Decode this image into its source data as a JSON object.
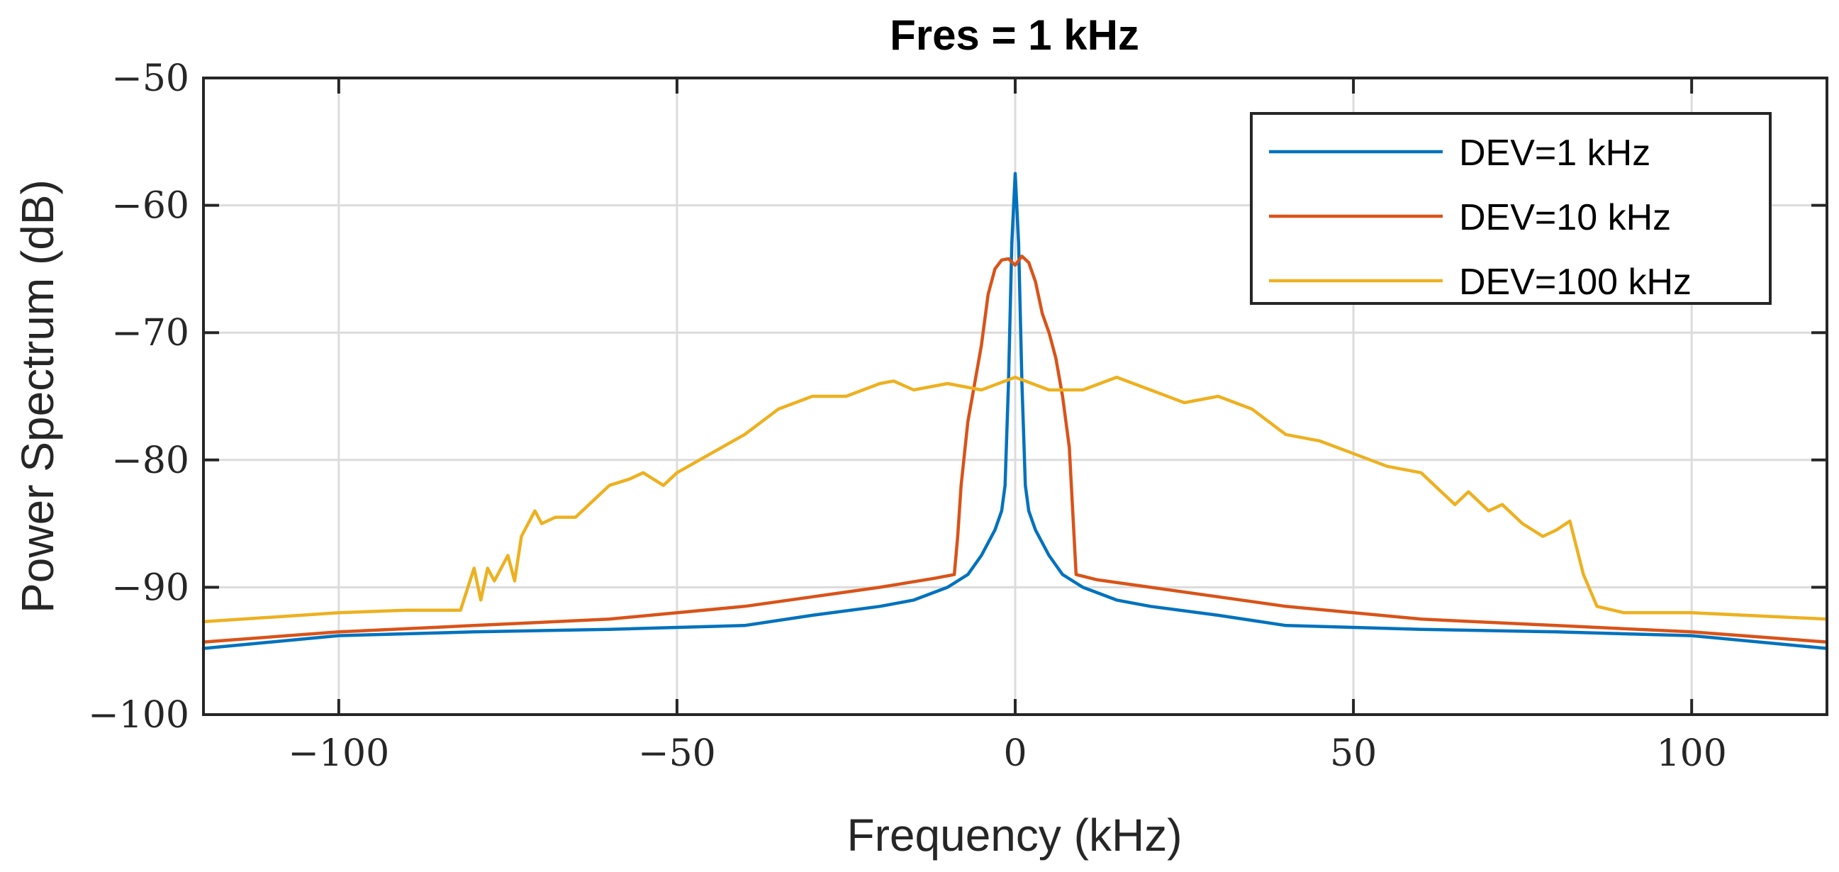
{
  "chart_data": {
    "type": "line",
    "title": "Fres = 1 kHz",
    "xlabel": "Frequency (kHz)",
    "ylabel": "Power Spectrum (dB)",
    "xlim": [
      -120,
      120
    ],
    "ylim": [
      -100,
      -50
    ],
    "xticks": [
      -100,
      -50,
      0,
      50,
      100
    ],
    "xtick_labels": [
      "−100",
      "−50",
      "0",
      "50",
      "100"
    ],
    "yticks": [
      -100,
      -90,
      -80,
      -70,
      -60,
      -50
    ],
    "ytick_labels": [
      "−100",
      "−90",
      "−80",
      "−70",
      "−60",
      "−50"
    ],
    "grid": true,
    "legend_position": "top-right",
    "series": [
      {
        "name": "DEV=1 kHz",
        "color": "#0072BD",
        "x": [
          -120,
          -100,
          -80,
          -60,
          -40,
          -30,
          -20,
          -15,
          -10,
          -7,
          -5,
          -3,
          -2,
          -1.5,
          -1,
          -0.5,
          0,
          0.5,
          1,
          1.5,
          2,
          3,
          5,
          7,
          10,
          15,
          20,
          30,
          40,
          60,
          80,
          100,
          120
        ],
        "y": [
          -94.8,
          -93.8,
          -93.5,
          -93.3,
          -93,
          -92.2,
          -91.5,
          -91,
          -90,
          -89,
          -87.5,
          -85.5,
          -84,
          -82,
          -74,
          -63,
          -57.5,
          -63,
          -74,
          -82,
          -84,
          -85.5,
          -87.5,
          -89,
          -90,
          -91,
          -91.5,
          -92.2,
          -93,
          -93.3,
          -93.5,
          -93.8,
          -94.8
        ]
      },
      {
        "name": "DEV=10 kHz",
        "color": "#D95319",
        "x": [
          -120,
          -100,
          -80,
          -60,
          -40,
          -20,
          -12,
          -9,
          -8.5,
          -8,
          -7,
          -6,
          -5,
          -4,
          -3,
          -2,
          -1,
          0,
          1,
          2,
          3,
          4,
          5,
          6,
          7,
          8,
          8.5,
          9,
          12,
          20,
          40,
          60,
          80,
          100,
          120
        ],
        "y": [
          -94.3,
          -93.5,
          -93,
          -92.5,
          -91.5,
          -90,
          -89.3,
          -89,
          -86,
          -82,
          -77,
          -74,
          -71,
          -67,
          -65,
          -64.3,
          -64.2,
          -64.7,
          -64,
          -64.5,
          -66,
          -68.5,
          -70,
          -72,
          -75,
          -79,
          -84,
          -89,
          -89.4,
          -90,
          -91.5,
          -92.5,
          -93,
          -93.5,
          -94.3
        ]
      },
      {
        "name": "DEV=100 kHz",
        "color": "#EDB120",
        "x": [
          -120,
          -100,
          -90,
          -82,
          -80,
          -79,
          -78,
          -77,
          -75,
          -74,
          -73,
          -71,
          -70,
          -68,
          -65,
          -62,
          -60,
          -57,
          -55,
          -52,
          -50,
          -45,
          -40,
          -35,
          -30,
          -25,
          -20,
          -18,
          -15,
          -10,
          -5,
          0,
          5,
          10,
          15,
          20,
          25,
          30,
          35,
          40,
          45,
          50,
          55,
          60,
          65,
          67,
          70,
          72,
          75,
          78,
          80,
          82,
          84,
          86,
          90,
          100,
          120
        ],
        "y": [
          -92.7,
          -92,
          -91.8,
          -91.8,
          -88.5,
          -91,
          -88.5,
          -89.5,
          -87.5,
          -89.5,
          -86,
          -84,
          -85,
          -84.5,
          -84.5,
          -83,
          -82,
          -81.5,
          -81,
          -82,
          -81,
          -79.5,
          -78,
          -76,
          -75,
          -75,
          -74,
          -73.8,
          -74.5,
          -74,
          -74.5,
          -73.5,
          -74.5,
          -74.5,
          -73.5,
          -74.5,
          -75.5,
          -75,
          -76,
          -78,
          -78.5,
          -79.5,
          -80.5,
          -81,
          -83.5,
          -82.5,
          -84,
          -83.5,
          -85,
          -86,
          -85.5,
          -84.8,
          -89,
          -91.5,
          -92,
          -92,
          -92.5
        ]
      }
    ]
  }
}
